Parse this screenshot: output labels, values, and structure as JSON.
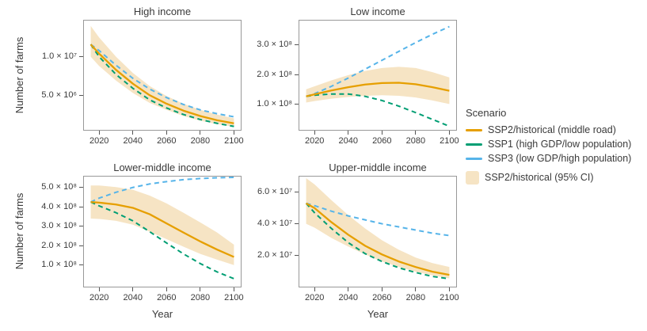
{
  "figure": {
    "ylabel": "Number of farms",
    "xlabel": "Year",
    "legend": {
      "title": "Scenario",
      "items": [
        {
          "id": "ssp2",
          "label": "SSP2/historical (middle road)",
          "color": "#E69F00",
          "style": "solid"
        },
        {
          "id": "ssp1",
          "label": "SSP1 (high GDP/low population)",
          "color": "#009E73",
          "style": "dashed"
        },
        {
          "id": "ssp3",
          "label": "SSP3 (low GDP/high population)",
          "color": "#56B4E9",
          "style": "dashed"
        }
      ],
      "band_item": {
        "label": "SSP2/historical (95% CI)",
        "color": "#F6E4C4"
      }
    }
  },
  "chart_data": [
    {
      "type": "line",
      "title": "High income",
      "x": [
        2015,
        2020,
        2030,
        2040,
        2050,
        2060,
        2070,
        2080,
        2090,
        2100
      ],
      "xticks": [
        2020,
        2040,
        2060,
        2080,
        2100
      ],
      "xlim": [
        2010.5,
        2104.5
      ],
      "ylim": [
        400000,
        14800000
      ],
      "yticks": [
        {
          "value": 5000000,
          "label": "5.0 × 10⁶"
        },
        {
          "value": 10000000,
          "label": "1.0 × 10⁷"
        }
      ],
      "series": [
        {
          "name": "SSP2/historical",
          "values": [
            11600000,
            10400000,
            8300000,
            6500000,
            5000000,
            3900000,
            3000000,
            2300000,
            1750000,
            1350000
          ]
        },
        {
          "name": "SSP1",
          "values": [
            11600000,
            10000000,
            7700000,
            5900000,
            4400000,
            3350000,
            2500000,
            1850000,
            1350000,
            950000
          ]
        },
        {
          "name": "SSP3",
          "values": [
            11600000,
            10800000,
            8900000,
            7200000,
            5800000,
            4700000,
            3800000,
            3100000,
            2600000,
            2200000
          ]
        }
      ],
      "band": {
        "name": "SSP2/historical (95% CI)",
        "lower": [
          10000000,
          8800000,
          6900000,
          5300000,
          4000000,
          3100000,
          2300000,
          1700000,
          1250000,
          900000
        ],
        "upper": [
          14000000,
          12500000,
          10000000,
          7900000,
          6200000,
          4900000,
          3900000,
          3100000,
          2500000,
          2000000
        ]
      }
    },
    {
      "type": "line",
      "title": "Low income",
      "x": [
        2015,
        2020,
        2030,
        2040,
        2050,
        2060,
        2070,
        2080,
        2090,
        2100
      ],
      "xticks": [
        2020,
        2040,
        2060,
        2080,
        2100
      ],
      "xlim": [
        2010.5,
        2104.5
      ],
      "ylim": [
        10000000,
        385000000
      ],
      "yticks": [
        {
          "value": 100000000,
          "label": "1.0 × 10⁸"
        },
        {
          "value": 200000000,
          "label": "2.0 × 10⁸"
        },
        {
          "value": 300000000,
          "label": "3.0 × 10⁸"
        }
      ],
      "series": [
        {
          "name": "SSP2/historical",
          "values": [
            126000000,
            133000000,
            146000000,
            157000000,
            166000000,
            171000000,
            172000000,
            167000000,
            157000000,
            145000000
          ]
        },
        {
          "name": "SSP1",
          "values": [
            126000000,
            130000000,
            134000000,
            134000000,
            126000000,
            112000000,
            93000000,
            71000000,
            48000000,
            25000000
          ]
        },
        {
          "name": "SSP3",
          "values": [
            126000000,
            135000000,
            160000000,
            188000000,
            218000000,
            248000000,
            278000000,
            308000000,
            336000000,
            362000000
          ]
        }
      ],
      "band": {
        "name": "SSP2/historical (95% CI)",
        "lower": [
          105000000,
          110000000,
          118000000,
          124000000,
          128000000,
          130000000,
          128000000,
          122000000,
          112000000,
          100000000
        ],
        "upper": [
          150000000,
          160000000,
          180000000,
          198000000,
          212000000,
          222000000,
          226000000,
          222000000,
          208000000,
          190000000
        ]
      }
    },
    {
      "type": "line",
      "title": "Lower-middle income",
      "x": [
        2015,
        2020,
        2030,
        2040,
        2050,
        2060,
        2070,
        2080,
        2090,
        2100
      ],
      "xticks": [
        2020,
        2040,
        2060,
        2080,
        2100
      ],
      "xlim": [
        2010.5,
        2104.5
      ],
      "ylim": [
        -15000000,
        560000000
      ],
      "yticks": [
        {
          "value": 100000000,
          "label": "1.0 × 10⁸"
        },
        {
          "value": 200000000,
          "label": "2.0 × 10⁸"
        },
        {
          "value": 300000000,
          "label": "3.0 × 10⁸"
        },
        {
          "value": 400000000,
          "label": "4.0 × 10⁸"
        },
        {
          "value": 500000000,
          "label": "5.0 × 10⁸"
        }
      ],
      "series": [
        {
          "name": "SSP2/historical",
          "values": [
            425000000,
            422000000,
            412000000,
            395000000,
            362000000,
            315000000,
            268000000,
            222000000,
            180000000,
            142000000
          ]
        },
        {
          "name": "SSP1",
          "values": [
            425000000,
            405000000,
            370000000,
            328000000,
            272000000,
            214000000,
            158000000,
            108000000,
            65000000,
            30000000
          ]
        },
        {
          "name": "SSP3",
          "values": [
            425000000,
            445000000,
            475000000,
            500000000,
            518000000,
            530000000,
            540000000,
            546000000,
            550000000,
            552000000
          ]
        }
      ],
      "band": {
        "name": "SSP2/historical (95% CI)",
        "lower": [
          340000000,
          338000000,
          328000000,
          308000000,
          272000000,
          234000000,
          195000000,
          158000000,
          128000000,
          100000000
        ],
        "upper": [
          510000000,
          510000000,
          502000000,
          488000000,
          458000000,
          418000000,
          370000000,
          320000000,
          268000000,
          205000000
        ]
      }
    },
    {
      "type": "line",
      "title": "Upper-middle income",
      "x": [
        2015,
        2020,
        2030,
        2040,
        2050,
        2060,
        2070,
        2080,
        2090,
        2100
      ],
      "xticks": [
        2020,
        2040,
        2060,
        2080,
        2100
      ],
      "xlim": [
        2010.5,
        2104.5
      ],
      "ylim": [
        -500000,
        70500000
      ],
      "yticks": [
        {
          "value": 20000000,
          "label": "2.0 × 10⁷"
        },
        {
          "value": 40000000,
          "label": "4.0 × 10⁷"
        },
        {
          "value": 60000000,
          "label": "6.0 × 10⁷"
        }
      ],
      "series": [
        {
          "name": "SSP2/historical",
          "values": [
            53000000,
            50000000,
            41000000,
            33000000,
            26000000,
            20500000,
            16000000,
            12500000,
            9500000,
            7500000
          ]
        },
        {
          "name": "SSP1",
          "values": [
            53000000,
            47000000,
            37000000,
            28000000,
            21000000,
            16000000,
            12000000,
            9000000,
            6500000,
            5000000
          ]
        },
        {
          "name": "SSP3",
          "values": [
            53000000,
            51500000,
            48000000,
            45000000,
            42500000,
            40000000,
            38000000,
            36000000,
            34000000,
            32500000
          ]
        }
      ],
      "band": {
        "name": "SSP2/historical (95% CI)",
        "lower": [
          40000000,
          37500000,
          31000000,
          25500000,
          20500000,
          16000000,
          12500000,
          9500000,
          7200000,
          5200000
        ],
        "upper": [
          69000000,
          65000000,
          55000000,
          45500000,
          37000000,
          29500000,
          23500000,
          18500000,
          15000000,
          12500000
        ]
      }
    }
  ]
}
